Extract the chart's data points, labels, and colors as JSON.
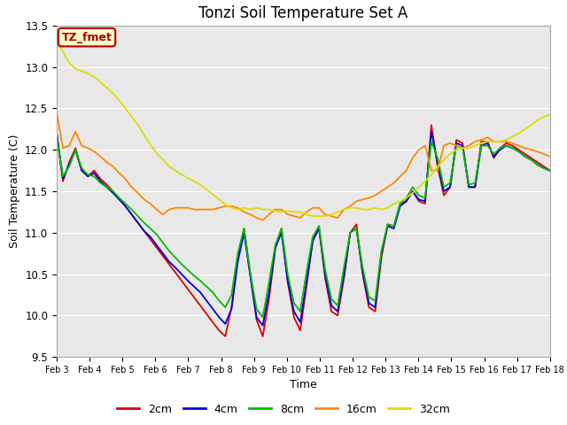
{
  "title": "Tonzi Soil Temperature Set A",
  "xlabel": "Time",
  "ylabel": "Soil Temperature (C)",
  "ylim": [
    9.5,
    13.5
  ],
  "xlim": [
    0,
    15
  ],
  "xtick_labels": [
    "Feb 3",
    "Feb 4",
    "Feb 5",
    "Feb 6",
    "Feb 7",
    "Feb 8",
    "Feb 9",
    "Feb 10",
    "Feb 11",
    "Feb 12",
    "Feb 13",
    "Feb 14",
    "Feb 15",
    "Feb 16",
    "Feb 17",
    "Feb 18"
  ],
  "legend_labels": [
    "2cm",
    "4cm",
    "8cm",
    "16cm",
    "32cm"
  ],
  "line_colors": [
    "#dd0000",
    "#0000dd",
    "#00bb00",
    "#ff8800",
    "#dddd00"
  ],
  "background_color": "#e8e8e8",
  "annotation_text": "TZ_fmet",
  "annotation_bg": "#ffffcc",
  "annotation_border": "#aa0000",
  "depth_2cm": [
    12.2,
    11.62,
    11.85,
    12.02,
    11.75,
    11.68,
    11.75,
    11.65,
    11.58,
    11.5,
    11.42,
    11.32,
    11.22,
    11.12,
    11.02,
    10.92,
    10.82,
    10.72,
    10.62,
    10.52,
    10.42,
    10.32,
    10.22,
    10.12,
    10.02,
    9.92,
    9.82,
    9.75,
    10.1,
    10.7,
    11.05,
    10.5,
    9.95,
    9.75,
    10.2,
    10.8,
    11.05,
    10.4,
    9.98,
    9.82,
    10.35,
    10.9,
    11.08,
    10.45,
    10.05,
    10.0,
    10.45,
    11.0,
    11.1,
    10.5,
    10.1,
    10.05,
    10.7,
    11.1,
    11.08,
    11.35,
    11.38,
    11.5,
    11.38,
    11.35,
    12.3,
    11.8,
    11.45,
    11.55,
    12.12,
    12.08,
    11.55,
    11.55,
    12.1,
    12.1,
    11.9,
    12.02,
    12.08,
    12.05,
    12.0,
    11.95,
    11.9,
    11.85,
    11.8,
    11.75
  ],
  "depth_4cm": [
    12.2,
    11.65,
    11.82,
    12.0,
    11.75,
    11.68,
    11.72,
    11.62,
    11.55,
    11.48,
    11.4,
    11.32,
    11.22,
    11.12,
    11.02,
    10.95,
    10.85,
    10.75,
    10.65,
    10.58,
    10.5,
    10.42,
    10.35,
    10.28,
    10.18,
    10.08,
    9.98,
    9.9,
    10.08,
    10.65,
    11.0,
    10.48,
    9.98,
    9.88,
    10.28,
    10.82,
    11.0,
    10.42,
    10.05,
    9.92,
    10.4,
    10.9,
    11.05,
    10.48,
    10.12,
    10.05,
    10.48,
    11.0,
    11.05,
    10.52,
    10.15,
    10.1,
    10.75,
    11.08,
    11.05,
    11.32,
    11.38,
    11.5,
    11.4,
    11.38,
    12.22,
    11.85,
    11.5,
    11.55,
    12.08,
    12.05,
    11.55,
    11.55,
    12.05,
    12.08,
    11.92,
    12.0,
    12.05,
    12.02,
    11.98,
    11.92,
    11.88,
    11.82,
    11.78,
    11.75
  ],
  "depth_8cm": [
    12.15,
    11.68,
    11.8,
    12.0,
    11.78,
    11.7,
    11.68,
    11.6,
    11.55,
    11.5,
    11.42,
    11.35,
    11.28,
    11.2,
    11.12,
    11.05,
    10.98,
    10.88,
    10.78,
    10.7,
    10.62,
    10.55,
    10.48,
    10.42,
    10.35,
    10.28,
    10.18,
    10.1,
    10.25,
    10.75,
    11.05,
    10.52,
    10.08,
    9.98,
    10.4,
    10.85,
    11.05,
    10.5,
    10.15,
    10.05,
    10.52,
    10.95,
    11.08,
    10.55,
    10.2,
    10.12,
    10.58,
    11.0,
    11.05,
    10.58,
    10.22,
    10.18,
    10.78,
    11.1,
    11.08,
    11.35,
    11.42,
    11.55,
    11.45,
    11.42,
    12.1,
    11.9,
    11.55,
    11.6,
    12.05,
    12.02,
    11.58,
    11.6,
    12.05,
    12.05,
    11.95,
    12.02,
    12.05,
    12.02,
    11.98,
    11.92,
    11.88,
    11.82,
    11.78,
    11.75
  ],
  "depth_16cm": [
    12.45,
    12.02,
    12.05,
    12.22,
    12.05,
    12.02,
    11.98,
    11.92,
    11.85,
    11.8,
    11.72,
    11.65,
    11.55,
    11.48,
    11.4,
    11.35,
    11.28,
    11.22,
    11.28,
    11.3,
    11.3,
    11.3,
    11.28,
    11.28,
    11.28,
    11.28,
    11.3,
    11.32,
    11.32,
    11.3,
    11.25,
    11.22,
    11.18,
    11.15,
    11.22,
    11.28,
    11.28,
    11.22,
    11.2,
    11.18,
    11.25,
    11.3,
    11.3,
    11.22,
    11.2,
    11.18,
    11.28,
    11.32,
    11.38,
    11.4,
    11.42,
    11.45,
    11.5,
    11.55,
    11.6,
    11.68,
    11.75,
    11.9,
    12.0,
    12.05,
    11.75,
    11.75,
    12.05,
    12.08,
    12.05,
    12.02,
    12.05,
    12.1,
    12.12,
    12.15,
    12.1,
    12.1,
    12.1,
    12.08,
    12.05,
    12.02,
    12.0,
    11.98,
    11.95,
    11.92
  ],
  "depth_32cm": [
    13.32,
    13.18,
    13.05,
    12.98,
    12.95,
    12.92,
    12.88,
    12.82,
    12.75,
    12.68,
    12.6,
    12.5,
    12.4,
    12.3,
    12.18,
    12.06,
    11.96,
    11.88,
    11.8,
    11.75,
    11.7,
    11.66,
    11.62,
    11.58,
    11.52,
    11.46,
    11.4,
    11.34,
    11.3,
    11.28,
    11.3,
    11.28,
    11.3,
    11.28,
    11.28,
    11.26,
    11.25,
    11.26,
    11.25,
    11.25,
    11.22,
    11.2,
    11.2,
    11.2,
    11.22,
    11.25,
    11.28,
    11.3,
    11.3,
    11.28,
    11.28,
    11.3,
    11.28,
    11.3,
    11.35,
    11.38,
    11.42,
    11.48,
    11.55,
    11.62,
    11.7,
    11.8,
    11.88,
    11.95,
    12.0,
    12.02,
    12.02,
    12.05,
    12.08,
    12.1,
    12.1,
    12.1,
    12.12,
    12.16,
    12.2,
    12.25,
    12.3,
    12.36,
    12.4,
    12.42
  ]
}
